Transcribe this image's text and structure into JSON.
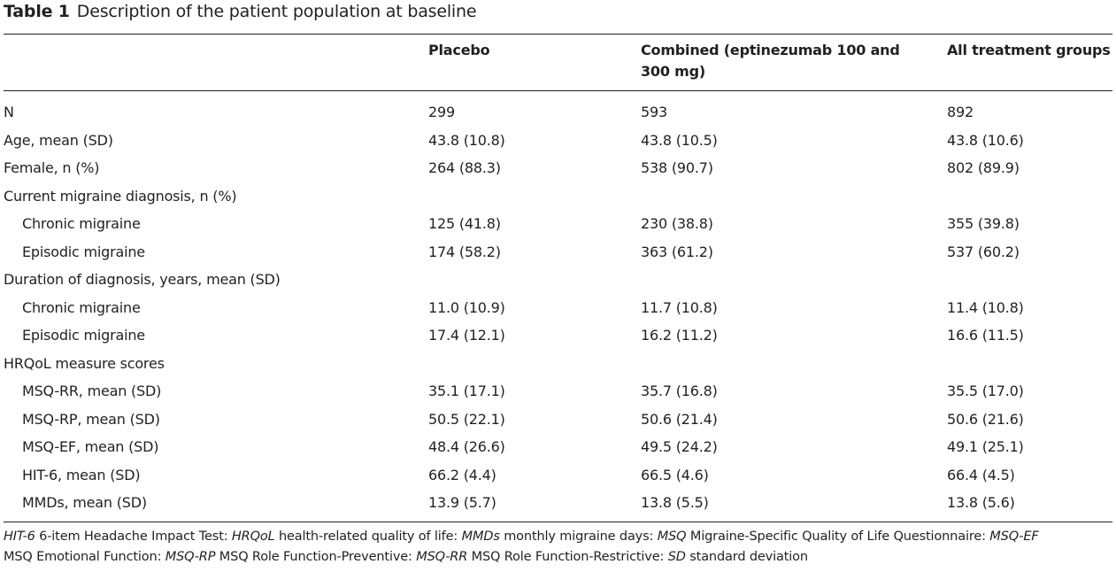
{
  "title": {
    "label": "Table 1",
    "text": "Description of the patient population at baseline"
  },
  "columns": {
    "placebo": "Placebo",
    "combined_line1": "Combined (eptinezumab 100 and",
    "combined_line2": "300 mg)",
    "all": "All treatment groups"
  },
  "rows": [
    {
      "label": "N",
      "placebo": "299",
      "combined": "593",
      "all": "892"
    },
    {
      "label": "Age, mean (SD)",
      "placebo": "43.8 (10.8)",
      "combined": "43.8 (10.5)",
      "all": "43.8 (10.6)"
    },
    {
      "label": "Female, n (%)",
      "placebo": "264 (88.3)",
      "combined": "538 (90.7)",
      "all": "802 (89.9)"
    },
    {
      "label": "Current migraine diagnosis, n (%)",
      "placebo": "",
      "combined": "",
      "all": ""
    },
    {
      "label": "Chronic migraine",
      "placebo": "125 (41.8)",
      "combined": "230 (38.8)",
      "all": "355 (39.8)"
    },
    {
      "label": "Episodic migraine",
      "placebo": "174 (58.2)",
      "combined": "363 (61.2)",
      "all": "537 (60.2)"
    },
    {
      "label": "Duration of diagnosis, years, mean (SD)",
      "placebo": "",
      "combined": "",
      "all": ""
    },
    {
      "label": "Chronic migraine",
      "placebo": "11.0 (10.9)",
      "combined": "11.7 (10.8)",
      "all": "11.4 (10.8)"
    },
    {
      "label": "Episodic migraine",
      "placebo": "17.4 (12.1)",
      "combined": "16.2 (11.2)",
      "all": "16.6 (11.5)"
    },
    {
      "label": "HRQoL measure scores",
      "placebo": "",
      "combined": "",
      "all": ""
    },
    {
      "label": "MSQ-RR, mean (SD)",
      "placebo": "35.1 (17.1)",
      "combined": "35.7 (16.8)",
      "all": "35.5 (17.0)"
    },
    {
      "label": "MSQ-RP, mean (SD)",
      "placebo": "50.5 (22.1)",
      "combined": "50.6 (21.4)",
      "all": "50.6 (21.6)"
    },
    {
      "label": "MSQ-EF, mean (SD)",
      "placebo": "48.4 (26.6)",
      "combined": "49.5 (24.2)",
      "all": "49.1 (25.1)"
    },
    {
      "label": "HIT-6, mean (SD)",
      "placebo": "66.2 (4.4)",
      "combined": "66.5 (4.6)",
      "all": "66.4 (4.5)"
    },
    {
      "label": "MMDs, mean (SD)",
      "placebo": "13.9 (5.7)",
      "combined": "13.8 (5.5)",
      "all": "13.8 (5.6)"
    }
  ],
  "footnote": {
    "line1": [
      {
        "abbr": "HIT-6",
        "def": " 6-item Headache Impact Test: "
      },
      {
        "abbr": "HRQoL",
        "def": " health-related quality of life: "
      },
      {
        "abbr": "MMDs",
        "def": " monthly migraine days: "
      },
      {
        "abbr": "MSQ",
        "def": " Migraine-Specific Quality of Life Questionnaire: "
      },
      {
        "abbr": "MSQ-EF",
        "def": ""
      }
    ],
    "line2": [
      {
        "abbr": "",
        "def": "MSQ Emotional Function: "
      },
      {
        "abbr": "MSQ-RP",
        "def": " MSQ Role Function-Preventive: "
      },
      {
        "abbr": "MSQ-RR",
        "def": " MSQ Role Function-Restrictive: "
      },
      {
        "abbr": "SD",
        "def": " standard deviation"
      }
    ]
  }
}
